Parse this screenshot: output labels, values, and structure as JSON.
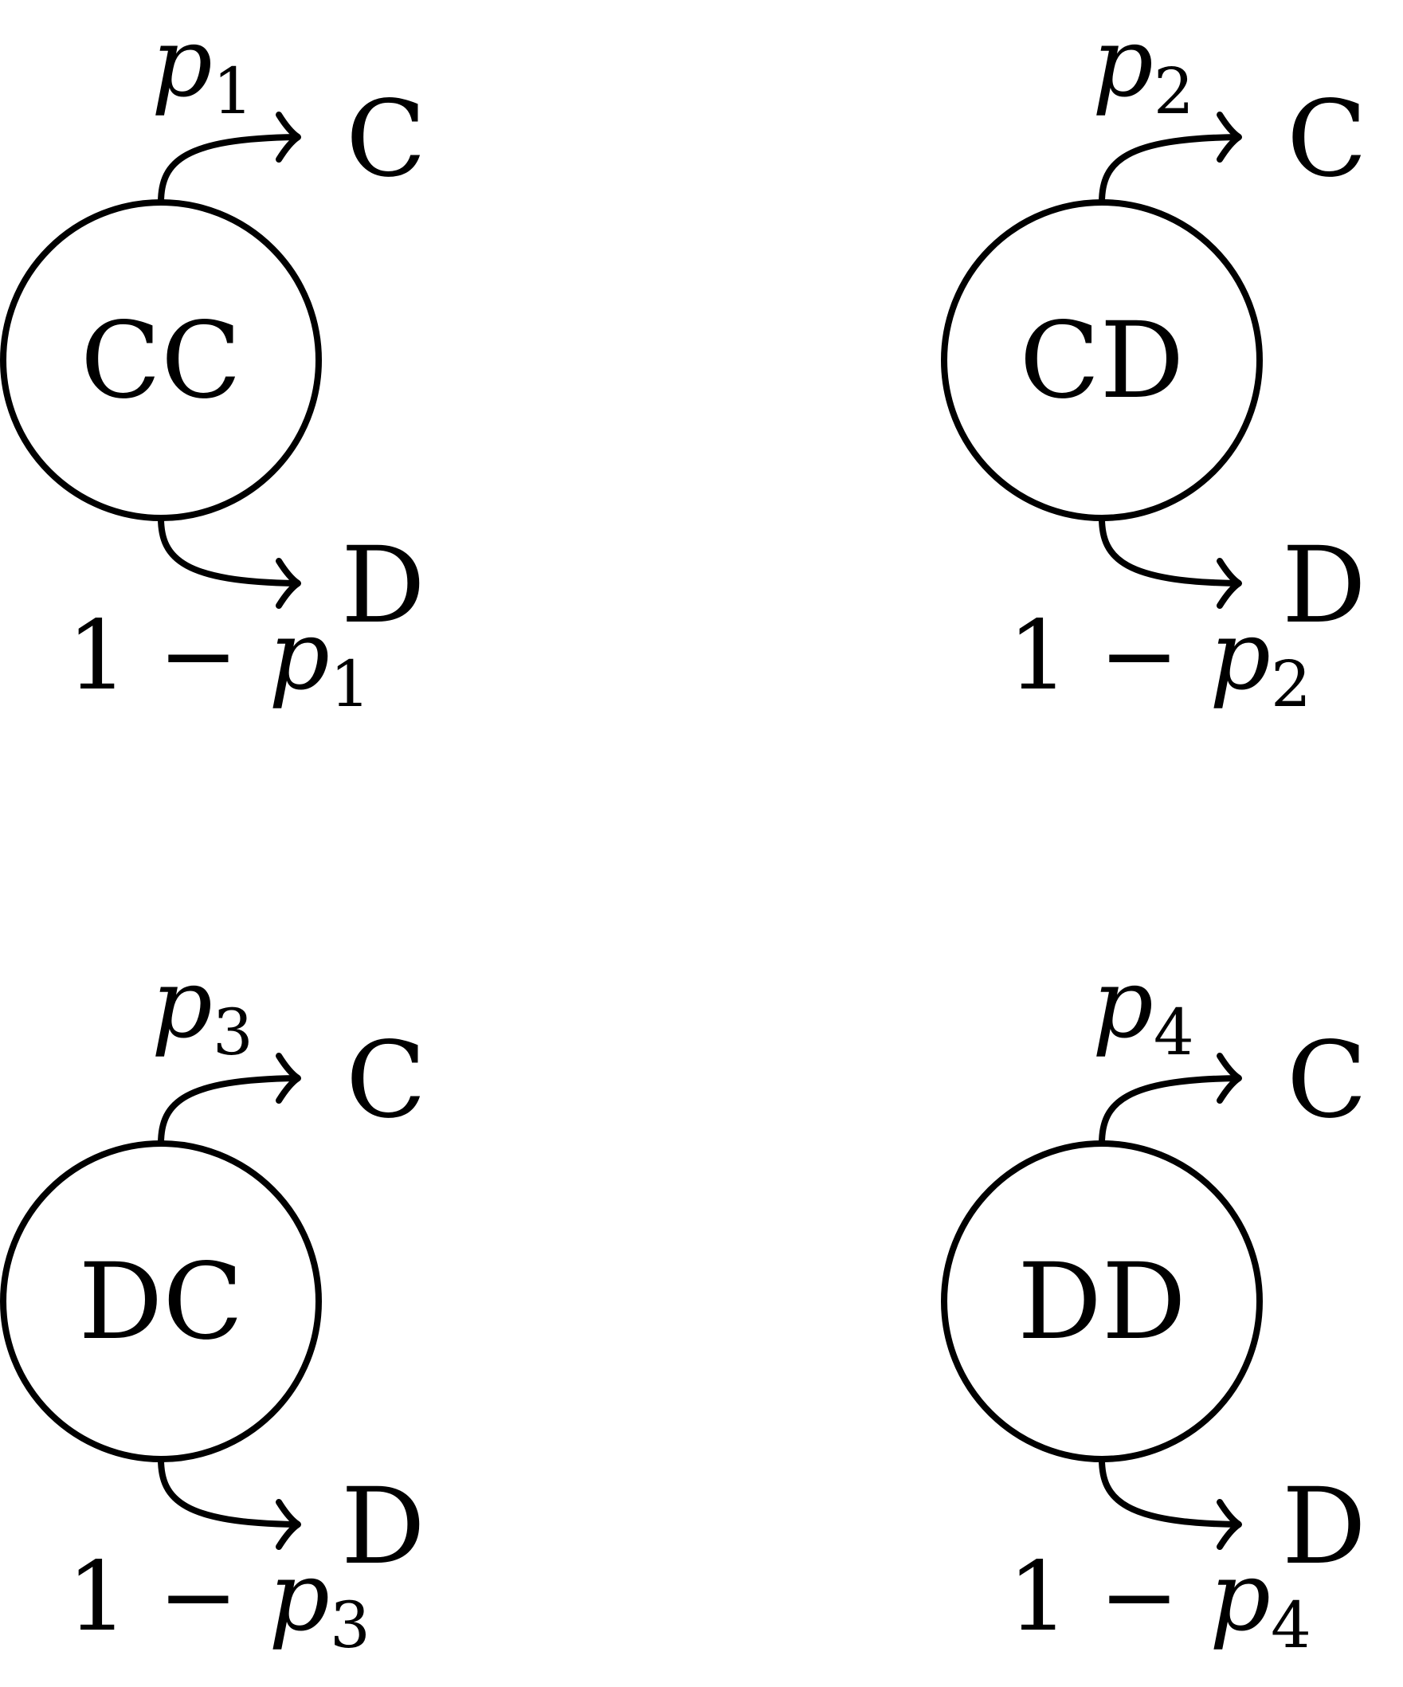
{
  "nodes": [
    {
      "state": "CC",
      "up_target": "C",
      "down_target": "D",
      "up_prob": {
        "var": "p",
        "sub": "1"
      },
      "down_prob": {
        "prefix": "1 − ",
        "var": "p",
        "sub": "1"
      }
    },
    {
      "state": "CD",
      "up_target": "C",
      "down_target": "D",
      "up_prob": {
        "var": "p",
        "sub": "2"
      },
      "down_prob": {
        "prefix": "1 − ",
        "var": "p",
        "sub": "2"
      }
    },
    {
      "state": "DC",
      "up_target": "C",
      "down_target": "D",
      "up_prob": {
        "var": "p",
        "sub": "3"
      },
      "down_prob": {
        "prefix": "1 − ",
        "var": "p",
        "sub": "3"
      }
    },
    {
      "state": "DD",
      "up_target": "C",
      "down_target": "D",
      "up_prob": {
        "var": "p",
        "sub": "4"
      },
      "down_prob": {
        "prefix": "1 − ",
        "var": "p",
        "sub": "4"
      }
    }
  ]
}
